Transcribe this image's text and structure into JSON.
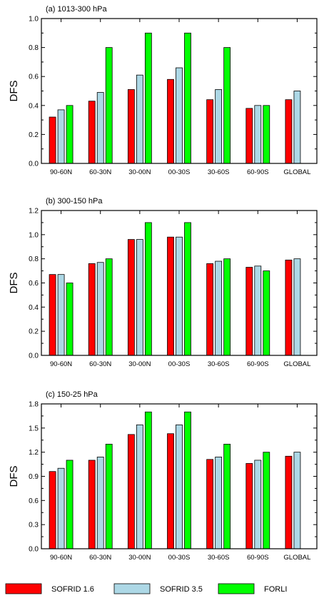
{
  "figure": {
    "legend": [
      {
        "name": "SOFRID 1.6",
        "color": "#ff0000"
      },
      {
        "name": "SOFRID 3.5",
        "color": "#add8e6"
      },
      {
        "name": "FORLI",
        "color": "#00ff00"
      }
    ]
  },
  "chart_data": [
    {
      "type": "bar",
      "title": "(a) 1013-300 hPa",
      "ylabel": "DFS",
      "xlabel": "",
      "ylim": [
        0,
        1.0
      ],
      "yticks": [
        "0.0",
        "0.2",
        "0.4",
        "0.6",
        "0.8",
        "1.0"
      ],
      "categories": [
        "90-60N",
        "60-30N",
        "30-00N",
        "00-30S",
        "30-60S",
        "60-90S",
        "GLOBAL"
      ],
      "series": [
        {
          "name": "SOFRID 1.6",
          "values": [
            0.32,
            0.43,
            0.51,
            0.58,
            0.44,
            0.38,
            0.44
          ]
        },
        {
          "name": "SOFRID 3.5",
          "values": [
            0.37,
            0.49,
            0.61,
            0.66,
            0.51,
            0.4,
            0.5
          ]
        },
        {
          "name": "FORLI",
          "values": [
            0.4,
            0.8,
            0.9,
            0.9,
            0.8,
            0.4,
            null
          ]
        }
      ],
      "grid": false,
      "legend_position": "bottom"
    },
    {
      "type": "bar",
      "title": "(b) 300-150 hPa",
      "ylabel": "DFS",
      "xlabel": "",
      "ylim": [
        0,
        1.2
      ],
      "yticks": [
        "0.0",
        "0.2",
        "0.4",
        "0.6",
        "0.8",
        "1.0",
        "1.2"
      ],
      "categories": [
        "90-60N",
        "60-30N",
        "30-00N",
        "00-30S",
        "30-60S",
        "60-90S",
        "GLOBAL"
      ],
      "series": [
        {
          "name": "SOFRID 1.6",
          "values": [
            0.67,
            0.76,
            0.96,
            0.98,
            0.76,
            0.73,
            0.79
          ]
        },
        {
          "name": "SOFRID 3.5",
          "values": [
            0.67,
            0.77,
            0.96,
            0.98,
            0.78,
            0.74,
            0.8
          ]
        },
        {
          "name": "FORLI",
          "values": [
            0.6,
            0.8,
            1.1,
            1.1,
            0.8,
            0.7,
            null
          ]
        }
      ],
      "grid": false,
      "legend_position": "bottom"
    },
    {
      "type": "bar",
      "title": "(c) 150-25 hPa",
      "ylabel": "DFS",
      "xlabel": "",
      "ylim": [
        0,
        1.8
      ],
      "yticks": [
        "0.0",
        "0.3",
        "0.6",
        "0.9",
        "1.2",
        "1.5",
        "1.8"
      ],
      "categories": [
        "90-60N",
        "60-30N",
        "30-00N",
        "00-30S",
        "30-60S",
        "60-90S",
        "GLOBAL"
      ],
      "series": [
        {
          "name": "SOFRID 1.6",
          "values": [
            0.96,
            1.1,
            1.42,
            1.43,
            1.11,
            1.06,
            1.15
          ]
        },
        {
          "name": "SOFRID 3.5",
          "values": [
            1.0,
            1.14,
            1.54,
            1.54,
            1.14,
            1.1,
            1.2
          ]
        },
        {
          "name": "FORLI",
          "values": [
            1.1,
            1.3,
            1.7,
            1.7,
            1.3,
            1.2,
            null
          ]
        }
      ],
      "grid": false,
      "legend_position": "bottom"
    }
  ]
}
